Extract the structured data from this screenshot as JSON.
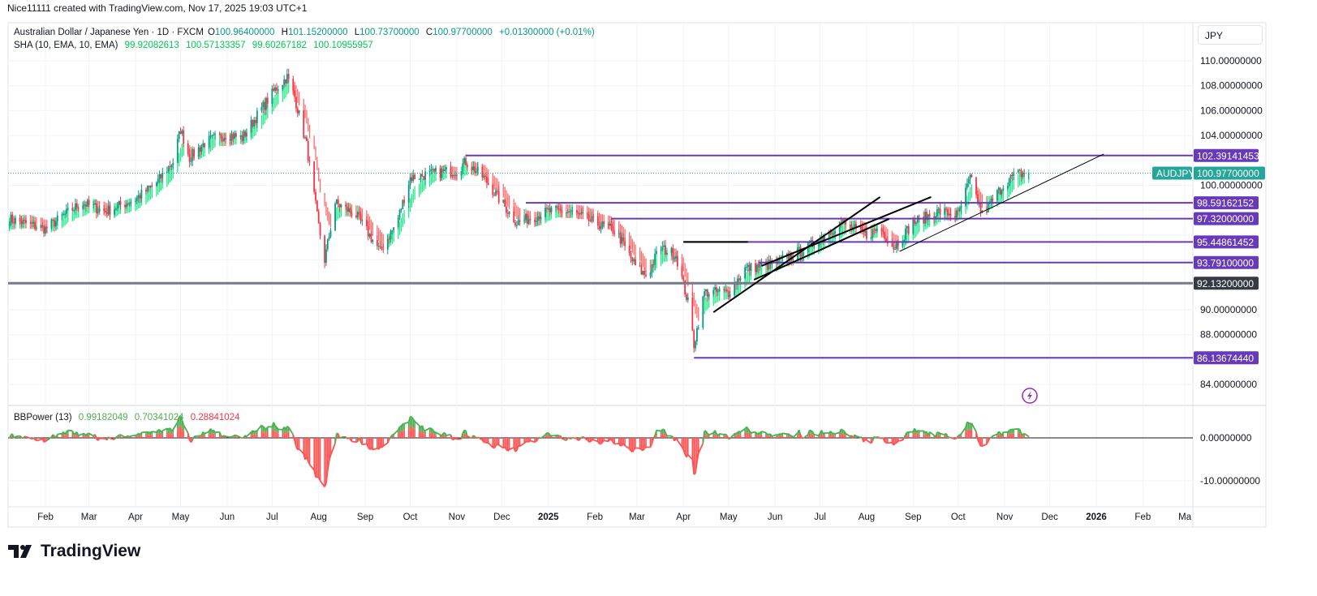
{
  "credit": "Nice11111 created with TradingView.com, Nov 17, 2025 19:03 UTC+1",
  "legend": {
    "symbol": "Australian Dollar / Japanese Yen · 1D · FXCM",
    "o_label": "O",
    "o": "100.96400000",
    "h_label": "H",
    "h": "101.15200000",
    "l_label": "L",
    "l": "100.73700000",
    "c_label": "C",
    "c": "100.97700000",
    "change": "+0.01300000 (+0.01%)",
    "sha_label": "SHA (10, EMA, 10, EMA)",
    "sha_values": [
      "99.92082613",
      "100.57133357",
      "99.60267182",
      "100.10955957"
    ],
    "bbp_label": "BBPower (13)",
    "bbp_values": [
      "0.99182049",
      "0.70341024",
      "0.28841024"
    ]
  },
  "currency": "JPY",
  "brand": "TradingView",
  "colors": {
    "up": "#089981",
    "down": "#f23645",
    "sha_up": "#00e676",
    "sha_down": "#ff5252",
    "level": "#673ab7",
    "gray_level": "#787b86",
    "last": "#26a69a",
    "bbp_up": "#4caf50",
    "bbp_down": "#ff5252"
  },
  "chart_data": {
    "type": "candlestick",
    "symbol": "AUDJPY",
    "price_axis": {
      "ticks": [
        84,
        86,
        88,
        90,
        92,
        94,
        96,
        98,
        100,
        102,
        104,
        106,
        108,
        110
      ],
      "range": [
        82.5,
        111.5
      ],
      "decimals": 8
    },
    "time_axis": {
      "labels": [
        [
          "2024-02-01",
          "Feb"
        ],
        [
          "2024-03-01",
          "Mar"
        ],
        [
          "2024-04-01",
          "Apr"
        ],
        [
          "2024-05-01",
          "May"
        ],
        [
          "2024-06-01",
          "Jun"
        ],
        [
          "2024-07-01",
          "Jul"
        ],
        [
          "2024-08-01",
          "Aug"
        ],
        [
          "2024-09-01",
          "Sep"
        ],
        [
          "2024-10-01",
          "Oct"
        ],
        [
          "2024-11-01",
          "Nov"
        ],
        [
          "2024-12-01",
          "Dec"
        ],
        [
          "2025-01-01",
          "2025"
        ],
        [
          "2025-02-01",
          "Feb"
        ],
        [
          "2025-03-01",
          "Mar"
        ],
        [
          "2025-04-01",
          "Apr"
        ],
        [
          "2025-05-01",
          "May"
        ],
        [
          "2025-06-01",
          "Jun"
        ],
        [
          "2025-07-01",
          "Jul"
        ],
        [
          "2025-08-01",
          "Aug"
        ],
        [
          "2025-09-01",
          "Sep"
        ],
        [
          "2025-10-01",
          "Oct"
        ],
        [
          "2025-11-01",
          "Nov"
        ],
        [
          "2025-12-01",
          "Dec"
        ],
        [
          "2026-01-01",
          "2026"
        ],
        [
          "2026-02-01",
          "Feb"
        ],
        [
          "2026-03-01",
          "Ma"
        ]
      ]
    },
    "approx_closes": [
      [
        "2024-01-08",
        97.3
      ],
      [
        "2024-02-01",
        96.5
      ],
      [
        "2024-02-25",
        98.6
      ],
      [
        "2024-03-12",
        97.9
      ],
      [
        "2024-04-01",
        98.9
      ],
      [
        "2024-04-15",
        100.2
      ],
      [
        "2024-04-26",
        101.9
      ],
      [
        "2024-05-01",
        104.5
      ],
      [
        "2024-05-07",
        102.2
      ],
      [
        "2024-05-18",
        103.5
      ],
      [
        "2024-06-01",
        104.1
      ],
      [
        "2024-06-11",
        103.8
      ],
      [
        "2024-06-22",
        105.8
      ],
      [
        "2024-07-03",
        107.7
      ],
      [
        "2024-07-11",
        108.7
      ],
      [
        "2024-07-16",
        107.1
      ],
      [
        "2024-07-24",
        103.2
      ],
      [
        "2024-08-01",
        96.7
      ],
      [
        "2024-08-05",
        94.0
      ],
      [
        "2024-08-12",
        98.6
      ],
      [
        "2024-08-26",
        97.6
      ],
      [
        "2024-09-11",
        94.7
      ],
      [
        "2024-09-22",
        97.0
      ],
      [
        "2024-10-01",
        100.6
      ],
      [
        "2024-10-13",
        100.9
      ],
      [
        "2024-11-01",
        101.2
      ],
      [
        "2024-11-07",
        101.9
      ],
      [
        "2024-11-19",
        100.6
      ],
      [
        "2024-12-01",
        98.6
      ],
      [
        "2024-12-11",
        97.0
      ],
      [
        "2025-01-01",
        97.9
      ],
      [
        "2025-01-15",
        97.9
      ],
      [
        "2025-02-01",
        97.0
      ],
      [
        "2025-02-15",
        96.3
      ],
      [
        "2025-03-01",
        93.3
      ],
      [
        "2025-03-08",
        92.7
      ],
      [
        "2025-03-16",
        95.0
      ],
      [
        "2025-03-27",
        94.4
      ],
      [
        "2025-04-05",
        90.1
      ],
      [
        "2025-04-08",
        87.2
      ],
      [
        "2025-04-15",
        91.4
      ],
      [
        "2025-05-01",
        91.4
      ],
      [
        "2025-05-12",
        93.3
      ],
      [
        "2025-06-01",
        93.7
      ],
      [
        "2025-06-23",
        95.0
      ],
      [
        "2025-07-15",
        97.0
      ],
      [
        "2025-08-01",
        96.0
      ],
      [
        "2025-08-10",
        96.6
      ],
      [
        "2025-08-19",
        95.0
      ],
      [
        "2025-09-01",
        97.0
      ],
      [
        "2025-09-18",
        97.9
      ],
      [
        "2025-10-01",
        97.6
      ],
      [
        "2025-10-09",
        100.6
      ],
      [
        "2025-10-17",
        97.6
      ],
      [
        "2025-11-01",
        100.2
      ],
      [
        "2025-11-09",
        100.9
      ],
      [
        "2025-11-17",
        100.977
      ]
    ],
    "last_price": {
      "label": "AUDJPY",
      "value": 100.977,
      "text": "100.97700000"
    },
    "levels": [
      {
        "price": 102.39141453,
        "text": "102.39141453",
        "from": "2024-11-07",
        "color": "#673ab7"
      },
      {
        "price": 98.59162152,
        "text": "98.59162152",
        "from": "2024-12-17",
        "color": "#673ab7"
      },
      {
        "price": 97.32,
        "text": "97.32000000",
        "from": "2025-02-12",
        "color": "#673ab7"
      },
      {
        "price": 95.44861452,
        "text": "95.44861452",
        "from": "2025-04-01",
        "color": "#673ab7"
      },
      {
        "price": 93.791,
        "text": "93.79100000",
        "from": "2025-05-21",
        "color": "#673ab7"
      },
      {
        "price": 92.132,
        "text": "92.13200000",
        "from": "2024-01-01",
        "color": "#787b86"
      },
      {
        "price": 86.1367444,
        "text": "86.13674440",
        "from": "2025-04-08",
        "color": "#673ab7"
      }
    ],
    "trendlines": [
      {
        "from": [
          "2025-04-01",
          95.45
        ],
        "to": [
          "2025-05-14",
          95.45
        ],
        "width": 2
      },
      {
        "from": [
          "2025-04-21",
          89.8
        ],
        "to": [
          "2025-08-10",
          99.06
        ],
        "width": 2
      },
      {
        "from": [
          "2025-05-23",
          93.52
        ],
        "to": [
          "2025-09-13",
          99.06
        ],
        "width": 2
      },
      {
        "from": [
          "2025-05-18",
          92.41
        ],
        "to": [
          "2025-08-16",
          97.3
        ],
        "width": 2
      },
      {
        "from": [
          "2025-08-23",
          94.69
        ],
        "to": [
          "2026-01-06",
          102.51
        ],
        "width": 1
      }
    ],
    "oscillator": {
      "name": "BBPower (13)",
      "ticks": [
        [
          "0",
          "0.00000000"
        ],
        [
          "-10",
          "-10.00000000"
        ]
      ],
      "range": [
        -16,
        8
      ]
    }
  }
}
